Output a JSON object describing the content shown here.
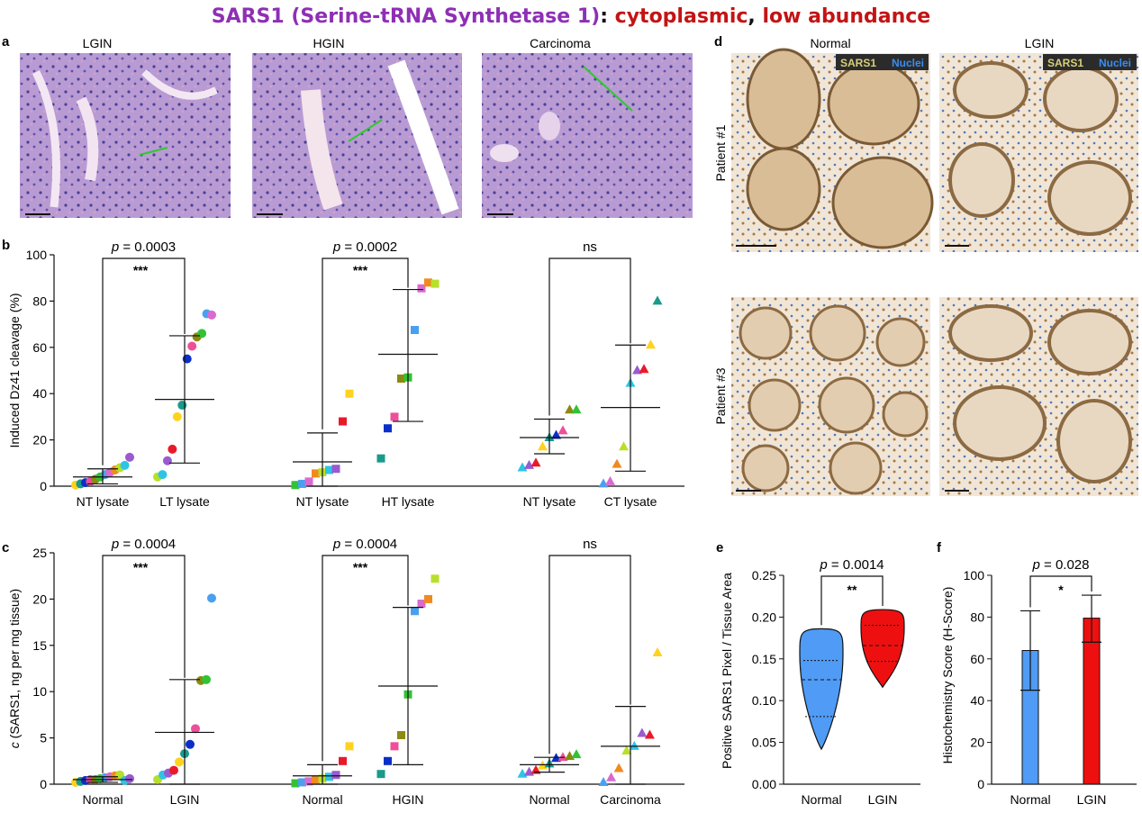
{
  "title": {
    "protein": "SARS1 (Serine-tRNA Synthetase 1)",
    "sep": ": ",
    "loc": "cytoplasmic",
    "comma": ", ",
    "abund": "low abundance"
  },
  "colors": {
    "title_purple": "#8e2fb5",
    "title_red": "#c31414",
    "he_stain": "#b79ad0",
    "ihc_stain": "#e9d8c2",
    "measure_line": "#2fc82f",
    "normal_bar": "#4f9bf5",
    "lgin_bar": "#ee1010"
  },
  "panel_a": {
    "letter": "a",
    "images": [
      {
        "label": "LGIN"
      },
      {
        "label": "HGIN"
      },
      {
        "label": "Carcinoma"
      }
    ]
  },
  "panel_d": {
    "letter": "d",
    "columns": [
      "Normal",
      "LGIN"
    ],
    "rows": [
      "Patient #1",
      "Patient #3"
    ],
    "legend_sars1": "SARS1",
    "legend_nuclei": "Nuclei"
  },
  "point_colors": [
    "#ffd21f",
    "#b8e02a",
    "#33c233",
    "#1a9a8a",
    "#2ec4e6",
    "#4aa0ee",
    "#0a2fc8",
    "#9a5ad0",
    "#d86ad0",
    "#ee4f9a",
    "#e81a2a",
    "#f08a1f",
    "#8a8a10"
  ],
  "chart_data": [
    {
      "panel": "b",
      "type": "scatter",
      "ylabel": "Induced Dz41 cleavage (%)",
      "ylim": [
        0,
        100
      ],
      "yticks": [
        0,
        20,
        40,
        60,
        80,
        100
      ],
      "comparisons": [
        {
          "p": "p = 0.0003",
          "stars": "***"
        },
        {
          "p": "p = 0.0002",
          "stars": "***"
        },
        {
          "p": "",
          "stars": "ns"
        }
      ],
      "groups": [
        {
          "label": "NT lysate",
          "shape": "circle",
          "mean": 4,
          "sd_low": 1,
          "sd_high": 7.5,
          "values": [
            0.5,
            1,
            1.5,
            2,
            3,
            4,
            5,
            6,
            7,
            8,
            9,
            12.5
          ]
        },
        {
          "label": "LT lysate",
          "shape": "circle",
          "mean": 37.5,
          "sd_low": 10,
          "sd_high": 65,
          "values": [
            4,
            5,
            11,
            16,
            30,
            35,
            55,
            60.5,
            64.5,
            66,
            74.5,
            74
          ]
        },
        {
          "label": "NT lysate",
          "shape": "square",
          "mean": 10.5,
          "sd_low": 0,
          "sd_high": 23,
          "values": [
            0.5,
            1,
            2,
            5.5,
            6,
            7,
            7.5,
            28,
            40
          ]
        },
        {
          "label": "HT lysate",
          "shape": "square",
          "mean": 57,
          "sd_low": 28,
          "sd_high": 85,
          "values": [
            12,
            25,
            30,
            46.5,
            47,
            67.5,
            85.5,
            88,
            87.5
          ]
        },
        {
          "label": "NT lysate",
          "shape": "triangle",
          "mean": 21,
          "sd_low": 14,
          "sd_high": 29,
          "values": [
            8,
            9,
            10,
            17,
            21,
            22,
            24,
            33,
            33
          ]
        },
        {
          "label": "CT lysate",
          "shape": "triangle",
          "mean": 34,
          "sd_low": 6.5,
          "sd_high": 61,
          "values": [
            1,
            2,
            9.5,
            17,
            44.5,
            50,
            50.5,
            61,
            80
          ]
        }
      ]
    },
    {
      "panel": "c",
      "type": "scatter",
      "ylabel": "c (SARS1, ng per mg tissue)",
      "ylim": [
        0,
        25
      ],
      "yticks": [
        0,
        5,
        10,
        15,
        20,
        25
      ],
      "comparisons": [
        {
          "p": "p = 0.0004",
          "stars": "***"
        },
        {
          "p": "p = 0.0004",
          "stars": "***"
        },
        {
          "p": "",
          "stars": "ns"
        }
      ],
      "groups": [
        {
          "label": "Normal",
          "shape": "circle",
          "mean": 0.5,
          "sd_low": 0.2,
          "sd_high": 0.8,
          "values": [
            0.2,
            0.3,
            0.4,
            0.5,
            0.5,
            0.6,
            0.7,
            0.8,
            0.9,
            1.0,
            0.4,
            0.6
          ]
        },
        {
          "label": "LGIN",
          "shape": "circle",
          "mean": 5.6,
          "sd_low": 0,
          "sd_high": 11.3,
          "values": [
            0.5,
            1.0,
            1.2,
            1.5,
            2.4,
            3.3,
            4.3,
            6.0,
            11.2,
            11.3,
            20.1
          ]
        },
        {
          "label": "Normal",
          "shape": "square",
          "mean": 0.9,
          "sd_low": 0,
          "sd_high": 2.1,
          "values": [
            0.1,
            0.2,
            0.3,
            0.5,
            0.6,
            0.8,
            1.0,
            2.5,
            4.1
          ]
        },
        {
          "label": "HGIN",
          "shape": "square",
          "mean": 10.6,
          "sd_low": 2.1,
          "sd_high": 19.1,
          "values": [
            1.1,
            2.5,
            4.1,
            5.3,
            9.7,
            18.7,
            19.5,
            20.0,
            22.2
          ]
        },
        {
          "label": "Normal",
          "shape": "triangle",
          "mean": 2.1,
          "sd_low": 1.3,
          "sd_high": 2.9,
          "values": [
            1.1,
            1.3,
            1.5,
            2.0,
            2.2,
            2.8,
            2.9,
            3.0,
            3.2
          ]
        },
        {
          "label": "Carcinoma",
          "shape": "triangle",
          "mean": 4.1,
          "sd_low": 0,
          "sd_high": 8.4,
          "values": [
            0.2,
            0.7,
            1.7,
            3.6,
            4.1,
            5.5,
            5.3,
            14.2
          ]
        }
      ]
    },
    {
      "panel": "e",
      "type": "violin",
      "ylabel": "Positive SARS1 Pixel / Tissue Area",
      "ylim": [
        0,
        0.25
      ],
      "yticks": [
        "0.00",
        "0.05",
        "0.10",
        "0.15",
        "0.20",
        "0.25"
      ],
      "p": "p = 0.0014",
      "stars": "**",
      "groups": [
        {
          "label": "Normal",
          "color": "#4f9bf5",
          "min": 0.042,
          "max": 0.186,
          "median": 0.125,
          "q1": 0.081,
          "q3": 0.148
        },
        {
          "label": "LGIN",
          "color": "#ee1010",
          "min": 0.116,
          "max": 0.209,
          "median": 0.166,
          "q1": 0.147,
          "q3": 0.19
        }
      ]
    },
    {
      "panel": "f",
      "type": "bar",
      "ylabel": "Histochemistry Score (H-Score)",
      "ylim": [
        0,
        100
      ],
      "yticks": [
        0,
        20,
        40,
        60,
        80,
        100
      ],
      "p": "p = 0.028",
      "stars": "*",
      "categories": [
        "Normal",
        "LGIN"
      ],
      "values": [
        64,
        79.5
      ],
      "errors_low": [
        45,
        68
      ],
      "errors_high": [
        83,
        90.5
      ],
      "colors": [
        "#4f9bf5",
        "#ee1010"
      ]
    }
  ]
}
